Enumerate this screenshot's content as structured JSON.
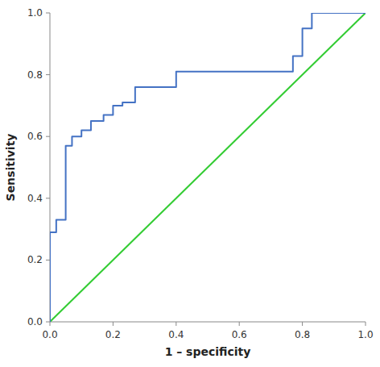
{
  "chart_data": {
    "type": "line",
    "xlabel": "1 – specificity",
    "ylabel": "Sensitivity",
    "series": [
      {
        "color": "#33CC33",
        "x": [
          0.0,
          1.0
        ],
        "values": [
          0.0,
          1.0
        ]
      },
      {
        "color": "#4472C4",
        "x": [
          0.0,
          0.0,
          0.02,
          0.02,
          0.05,
          0.05,
          0.07,
          0.07,
          0.1,
          0.1,
          0.13,
          0.13,
          0.17,
          0.17,
          0.2,
          0.2,
          0.23,
          0.23,
          0.27,
          0.27,
          0.3,
          0.3,
          0.33,
          0.33,
          0.37,
          0.37,
          0.4,
          0.4,
          0.43,
          0.43,
          0.53,
          0.53,
          0.77,
          0.77,
          0.8,
          0.8,
          0.83,
          0.83,
          1.0
        ],
        "values": [
          0.0,
          0.29,
          0.29,
          0.33,
          0.33,
          0.57,
          0.57,
          0.6,
          0.6,
          0.62,
          0.62,
          0.65,
          0.65,
          0.67,
          0.67,
          0.7,
          0.7,
          0.71,
          0.71,
          0.76,
          0.76,
          0.76,
          0.76,
          0.76,
          0.76,
          0.76,
          0.76,
          0.81,
          0.81,
          0.81,
          0.81,
          0.81,
          0.81,
          0.86,
          0.86,
          0.95,
          0.95,
          1.0,
          1.0
        ]
      }
    ],
    "xlim": [
      0.0,
      1.0
    ],
    "ylim": [
      0.0,
      1.0
    ],
    "xticks": [
      {
        "value": 0.0,
        "label": "0.0"
      },
      0.2,
      0.4,
      0.6,
      0.8,
      {
        "value": 1.0,
        "label": "1.0"
      }
    ],
    "yticks": [
      {
        "value": 0.0,
        "label": "0.0"
      },
      0.2,
      0.4,
      0.6,
      0.8,
      {
        "value": 1.0,
        "label": "1.0"
      }
    ],
    "grid": false
  }
}
